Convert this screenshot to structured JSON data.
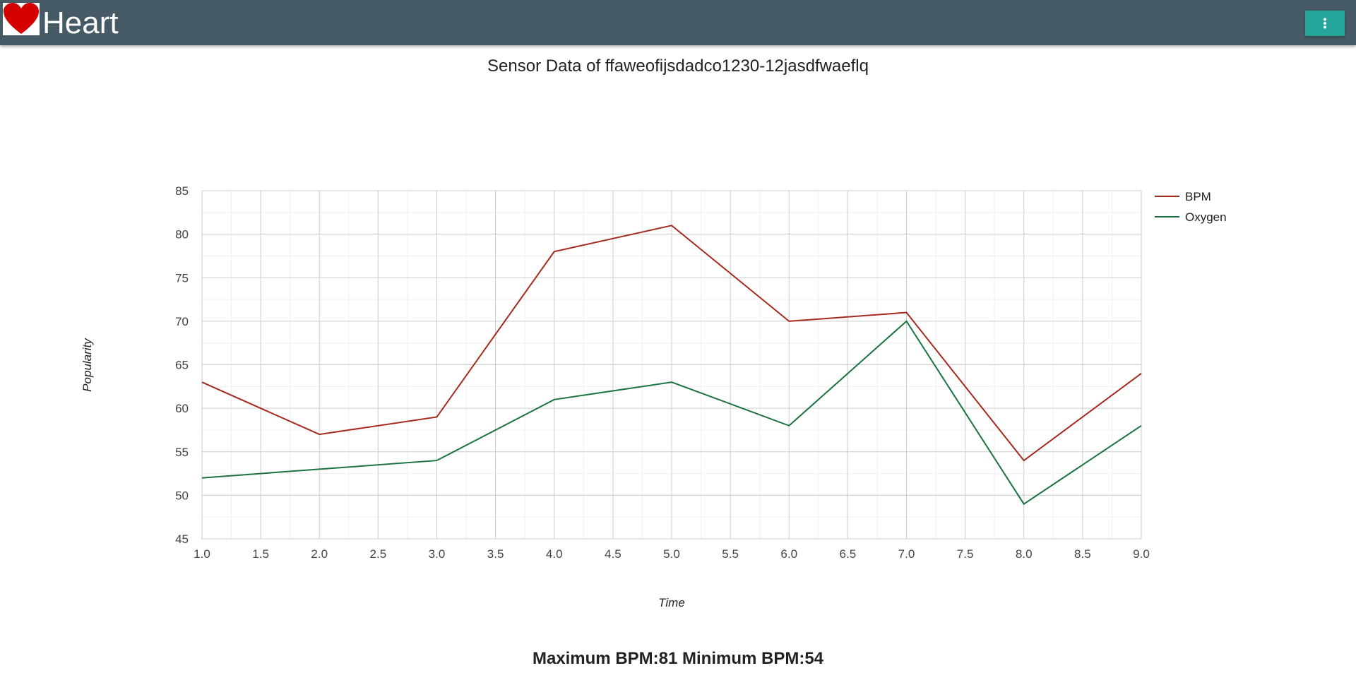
{
  "header": {
    "brand": "Heart",
    "logo_icon": "heart-icon",
    "menu_icon": "more-vert-icon",
    "bar_color": "#455a64",
    "menu_color": "#26a69a"
  },
  "chart_data": {
    "type": "line",
    "title": "Sensor Data of ffaweofijsdadco1230-12jasdfwaeflq",
    "xlabel": "Time",
    "ylabel": "Popularity",
    "x": [
      1,
      2,
      3,
      4,
      5,
      6,
      7,
      8,
      9
    ],
    "xlim": [
      1,
      9
    ],
    "ylim": [
      45,
      85
    ],
    "xticks": [
      "1.0",
      "1.5",
      "2.0",
      "2.5",
      "3.0",
      "3.5",
      "4.0",
      "4.5",
      "5.0",
      "5.5",
      "6.0",
      "6.5",
      "7.0",
      "7.5",
      "8.0",
      "8.5",
      "9.0"
    ],
    "yticks": [
      "45",
      "50",
      "55",
      "60",
      "65",
      "70",
      "75",
      "80",
      "85"
    ],
    "grid": true,
    "legend": "right",
    "series": [
      {
        "name": "BPM",
        "color": "#a52a1e",
        "values": [
          63,
          57,
          59,
          78,
          81,
          70,
          71,
          54,
          64
        ]
      },
      {
        "name": "Oxygen",
        "color": "#1b7340",
        "values": [
          52,
          53,
          54,
          61,
          63,
          58,
          70,
          49,
          58
        ]
      }
    ]
  },
  "summary": {
    "text": "Maximum BPM:81 Minimum BPM:54"
  }
}
